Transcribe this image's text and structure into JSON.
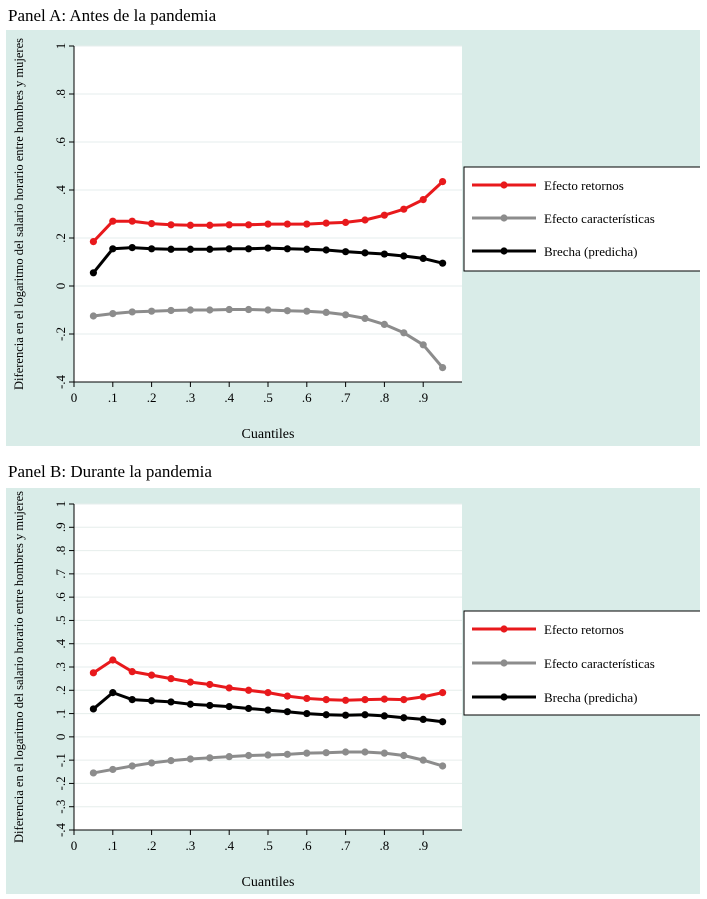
{
  "chart_data": [
    {
      "type": "line",
      "title": "Panel A: Antes de la pandemia",
      "xlabel": "Cuantiles",
      "ylabel": "Diferencia en el logaritmo del salario horario entre hombres y mujeres",
      "xlim": [
        0,
        1
      ],
      "ylim": [
        -0.4,
        1
      ],
      "xticks": [
        0,
        0.1,
        0.2,
        0.3,
        0.4,
        0.5,
        0.6,
        0.7,
        0.8,
        0.9
      ],
      "xtick_labels": [
        "0",
        ".1",
        ".2",
        ".3",
        ".4",
        ".5",
        ".6",
        ".7",
        ".8",
        ".9"
      ],
      "yticks": [
        -0.4,
        -0.2,
        0,
        0.2,
        0.4,
        0.6,
        0.8,
        1
      ],
      "ytick_labels": [
        "-.4",
        "-.2",
        "0",
        ".2",
        ".4",
        ".6",
        ".8",
        "1"
      ],
      "grid": true,
      "legend_position": "right",
      "x": [
        0.05,
        0.1,
        0.15,
        0.2,
        0.25,
        0.3,
        0.35,
        0.4,
        0.45,
        0.5,
        0.55,
        0.6,
        0.65,
        0.7,
        0.75,
        0.8,
        0.85,
        0.9,
        0.95
      ],
      "series": [
        {
          "name": "Efecto retornos",
          "color": "#e8191c",
          "values": [
            0.185,
            0.27,
            0.27,
            0.26,
            0.255,
            0.253,
            0.253,
            0.255,
            0.255,
            0.258,
            0.258,
            0.258,
            0.262,
            0.265,
            0.275,
            0.295,
            0.32,
            0.36,
            0.435
          ]
        },
        {
          "name": "Efecto características",
          "color": "#8c8c8c",
          "values": [
            -0.125,
            -0.115,
            -0.108,
            -0.105,
            -0.102,
            -0.1,
            -0.1,
            -0.098,
            -0.098,
            -0.1,
            -0.103,
            -0.105,
            -0.11,
            -0.12,
            -0.135,
            -0.16,
            -0.195,
            -0.245,
            -0.34
          ]
        },
        {
          "name": "Brecha (predicha)",
          "color": "#000000",
          "values": [
            0.055,
            0.155,
            0.16,
            0.155,
            0.153,
            0.153,
            0.153,
            0.155,
            0.155,
            0.158,
            0.155,
            0.153,
            0.15,
            0.143,
            0.138,
            0.133,
            0.125,
            0.115,
            0.095
          ]
        }
      ]
    },
    {
      "type": "line",
      "title": "Panel B: Durante la pandemia",
      "xlabel": "Cuantiles",
      "ylabel": "Diferencia en el logaritmo del salario horario entre hombres y mujeres",
      "xlim": [
        0,
        1
      ],
      "ylim": [
        -0.4,
        1
      ],
      "xticks": [
        0,
        0.1,
        0.2,
        0.3,
        0.4,
        0.5,
        0.6,
        0.7,
        0.8,
        0.9
      ],
      "xtick_labels": [
        "0",
        ".1",
        ".2",
        ".3",
        ".4",
        ".5",
        ".6",
        ".7",
        ".8",
        ".9"
      ],
      "yticks": [
        -0.4,
        -0.3,
        -0.2,
        -0.1,
        0,
        0.1,
        0.2,
        0.3,
        0.4,
        0.5,
        0.6,
        0.7,
        0.8,
        0.9,
        1
      ],
      "ytick_labels": [
        "-.4",
        "-.3",
        "-.2",
        "-.1",
        "0",
        ".1",
        ".2",
        ".3",
        ".4",
        ".5",
        ".6",
        ".7",
        ".8",
        ".9",
        "1"
      ],
      "grid": true,
      "legend_position": "right",
      "x": [
        0.05,
        0.1,
        0.15,
        0.2,
        0.25,
        0.3,
        0.35,
        0.4,
        0.45,
        0.5,
        0.55,
        0.6,
        0.65,
        0.7,
        0.75,
        0.8,
        0.85,
        0.9,
        0.95
      ],
      "series": [
        {
          "name": "Efecto retornos",
          "color": "#e8191c",
          "values": [
            0.275,
            0.33,
            0.28,
            0.265,
            0.25,
            0.235,
            0.225,
            0.21,
            0.2,
            0.19,
            0.175,
            0.165,
            0.16,
            0.157,
            0.16,
            0.162,
            0.16,
            0.172,
            0.19
          ]
        },
        {
          "name": "Efecto características",
          "color": "#8c8c8c",
          "values": [
            -0.155,
            -0.14,
            -0.125,
            -0.112,
            -0.102,
            -0.095,
            -0.09,
            -0.085,
            -0.08,
            -0.078,
            -0.075,
            -0.07,
            -0.068,
            -0.065,
            -0.065,
            -0.07,
            -0.08,
            -0.1,
            -0.125
          ]
        },
        {
          "name": "Brecha (predicha)",
          "color": "#000000",
          "values": [
            0.12,
            0.19,
            0.16,
            0.155,
            0.15,
            0.14,
            0.135,
            0.13,
            0.122,
            0.115,
            0.108,
            0.1,
            0.095,
            0.093,
            0.095,
            0.09,
            0.082,
            0.075,
            0.065
          ]
        }
      ]
    }
  ]
}
